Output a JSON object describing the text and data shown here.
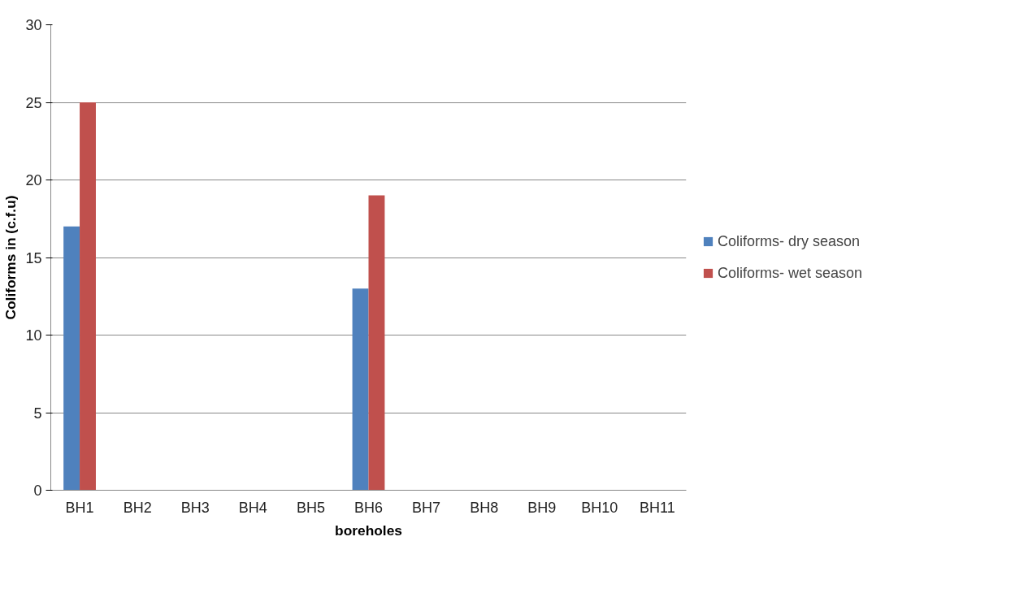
{
  "chart_data": {
    "type": "bar",
    "xlabel": "boreholes",
    "ylabel": "Coliforms in (c.f.u)",
    "categories": [
      "BH1",
      "BH2",
      "BH3",
      "BH4",
      "BH5",
      "BH6",
      "BH7",
      "BH8",
      "BH9",
      "BH10",
      "BH11"
    ],
    "series": [
      {
        "name": "Coliforms- dry season",
        "color": "#4f81bd",
        "values": [
          17,
          0,
          0,
          0,
          0,
          13,
          0,
          0,
          0,
          0,
          0
        ]
      },
      {
        "name": "Coliforms- wet season",
        "color": "#c0504d",
        "values": [
          25,
          0,
          0,
          0,
          0,
          19,
          0,
          0,
          0,
          0,
          0
        ]
      }
    ],
    "ylim": [
      0,
      30
    ],
    "yticks": [
      0,
      5,
      10,
      15,
      20,
      25,
      30
    ],
    "grid": "y",
    "legend": "right"
  }
}
